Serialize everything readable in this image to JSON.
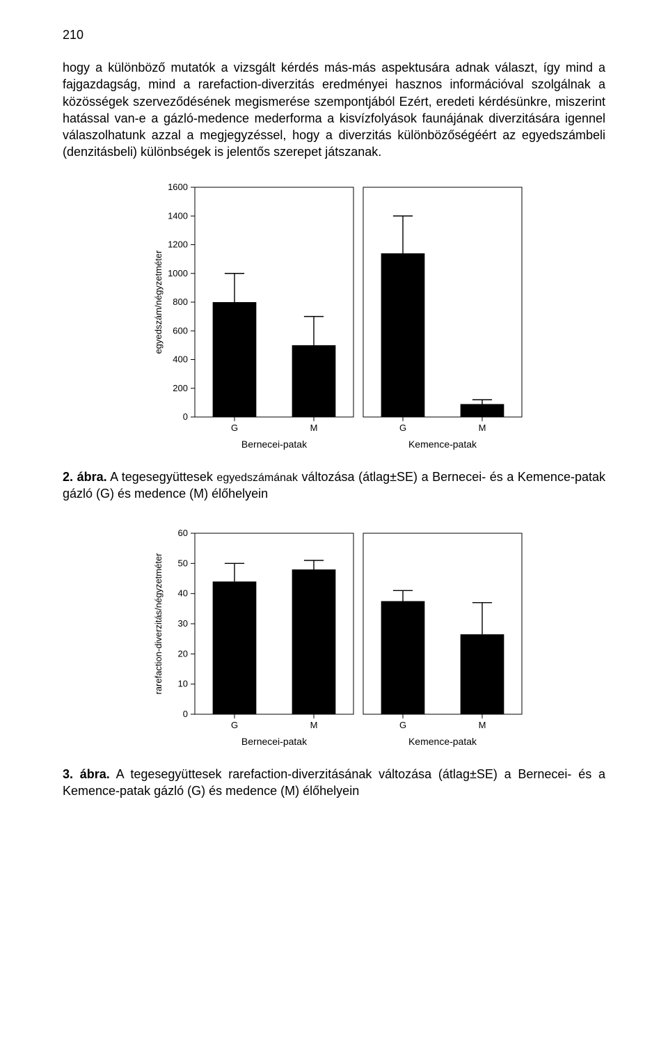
{
  "page_number": "210",
  "paragraph": "hogy a különböző mutatók a vizsgált kérdés más-más aspektusára adnak választ, így mind a fajgazdagság, mind a rarefaction-diverzitás eredményei hasznos információval szolgálnak a közösségek szerveződésének megismerése szempontjából Ezért, eredeti kérdésünkre, miszerint hatással van-e a gázló-medence mederforma a kisvízfolyások faunájának diverzitására igennel válaszolhatunk azzal a megjegyzéssel, hogy a diverzitás különbözőségéért az egyedszámbeli (denzitásbeli) különbségek is jelentős szerepet játszanak.",
  "fig2": {
    "lead": "2. ábra.",
    "text_a": " A tegesegyüttesek ",
    "text_small": "egyedszámának",
    "text_b": " változása (átlag±SE) a Bernecei- és a Kemence-patak gázló (G) és medence (M) élőhelyein"
  },
  "fig3": {
    "lead": "3. ábra.",
    "text": " A tegesegyüttesek rarefaction-diverzitásának változása (átlag±SE) a Bernecei- és a Kemence-patak gázló (G) és medence (M) élőhelyein"
  },
  "chart1": {
    "type": "bar-with-error",
    "ylabel": "egyedszám/négyzetméter",
    "ylim": [
      0,
      1600
    ],
    "ytick_step": 200,
    "panels": [
      {
        "name": "Bernecei-patak",
        "categories": [
          "G",
          "M"
        ],
        "values": [
          800,
          500
        ],
        "errors": [
          200,
          200
        ]
      },
      {
        "name": "Kemence-patak",
        "categories": [
          "G",
          "M"
        ],
        "values": [
          1140,
          90
        ],
        "errors": [
          260,
          30
        ]
      }
    ],
    "colors": {
      "bar": "#000000",
      "axis": "#000000",
      "background": "#ffffff",
      "text": "#000000"
    },
    "bar_width_rel": 0.55,
    "label_fontsize": 13,
    "tick_fontsize": 13,
    "panel_label_fontsize": 14
  },
  "chart2": {
    "type": "bar-with-error",
    "ylabel": "rarefaction-diverzitás/négyzetméter",
    "ylim": [
      0,
      60
    ],
    "ytick_step": 10,
    "panels": [
      {
        "name": "Bernecei-patak",
        "categories": [
          "G",
          "M"
        ],
        "values": [
          44,
          48
        ],
        "errors": [
          6,
          3
        ]
      },
      {
        "name": "Kemence-patak",
        "categories": [
          "G",
          "M"
        ],
        "values": [
          37.5,
          26.5
        ],
        "errors": [
          3.5,
          10.5
        ]
      }
    ],
    "colors": {
      "bar": "#000000",
      "axis": "#000000",
      "background": "#ffffff",
      "text": "#000000"
    },
    "bar_width_rel": 0.55,
    "label_fontsize": 13,
    "tick_fontsize": 13,
    "panel_label_fontsize": 14
  }
}
